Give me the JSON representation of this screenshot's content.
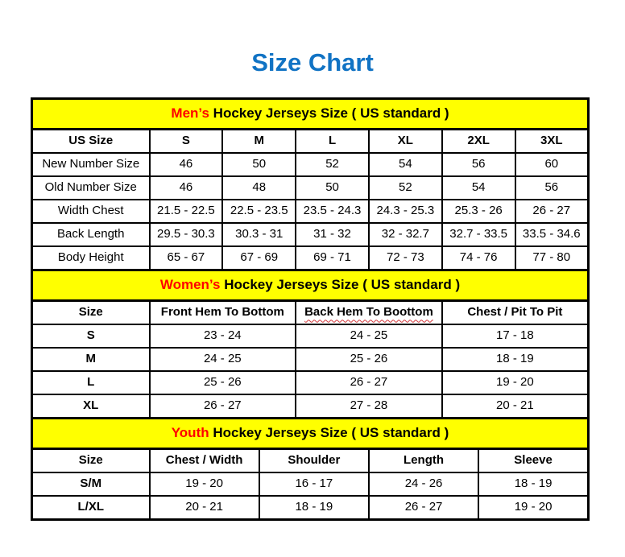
{
  "title": "Size Chart",
  "colors": {
    "title_blue": "#1173C4",
    "banner_yellow": "#FFFF00",
    "highlight_red": "#FF0000",
    "border_black": "#000000"
  },
  "sections": [
    {
      "id": "mens",
      "banner": {
        "highlight": "Men’s",
        "rest": " Hockey Jerseys Size ( US standard )"
      },
      "headers": [
        "US Size",
        "S",
        "M",
        "L",
        "XL",
        "2XL",
        "3XL"
      ],
      "bold_row_labels": false,
      "rows": [
        {
          "label": "New Number Size",
          "values": [
            "46",
            "50",
            "52",
            "54",
            "56",
            "60"
          ]
        },
        {
          "label": "Old Number Size",
          "values": [
            "46",
            "48",
            "50",
            "52",
            "54",
            "56"
          ]
        },
        {
          "label": "Width Chest",
          "values": [
            "21.5 - 22.5",
            "22.5 - 23.5",
            "23.5 - 24.3",
            "24.3 - 25.3",
            "25.3 - 26",
            "26 - 27"
          ]
        },
        {
          "label": "Back Length",
          "values": [
            "29.5 - 30.3",
            "30.3 - 31",
            "31 - 32",
            "32 - 32.7",
            "32.7 - 33.5",
            "33.5 - 34.6"
          ]
        },
        {
          "label": "Body Height",
          "values": [
            "65 - 67",
            "67 - 69",
            "69 - 71",
            "72 - 73",
            "74 - 76",
            "77 - 80"
          ]
        }
      ]
    },
    {
      "id": "womens",
      "banner": {
        "highlight": "Women’s",
        "rest": " Hockey Jerseys Size ( US standard )"
      },
      "headers": [
        "Size",
        "Front Hem To Bottom",
        "Back Hem To Boottom",
        "Chest / Pit To Pit"
      ],
      "squiggle_index": 2,
      "bold_row_labels": true,
      "rows": [
        {
          "label": "S",
          "values": [
            "23 - 24",
            "24 - 25",
            "17 - 18"
          ]
        },
        {
          "label": "M",
          "values": [
            "24 - 25",
            "25 - 26",
            "18 - 19"
          ]
        },
        {
          "label": "L",
          "values": [
            "25 - 26",
            "26 - 27",
            "19 - 20"
          ]
        },
        {
          "label": "XL",
          "values": [
            "26 - 27",
            "27 - 28",
            "20 - 21"
          ]
        }
      ]
    },
    {
      "id": "youth",
      "banner": {
        "highlight": "Youth",
        "rest": " Hockey Jerseys Size ( US standard )"
      },
      "headers": [
        "Size",
        "Chest / Width",
        "Shoulder",
        "Length",
        "Sleeve"
      ],
      "bold_row_labels": true,
      "rows": [
        {
          "label": "S/M",
          "values": [
            "19 - 20",
            "16 - 17",
            "24 - 26",
            "18 - 19"
          ]
        },
        {
          "label": "L/XL",
          "values": [
            "20 - 21",
            "18 - 19",
            "26 - 27",
            "19 - 20"
          ]
        }
      ]
    }
  ]
}
